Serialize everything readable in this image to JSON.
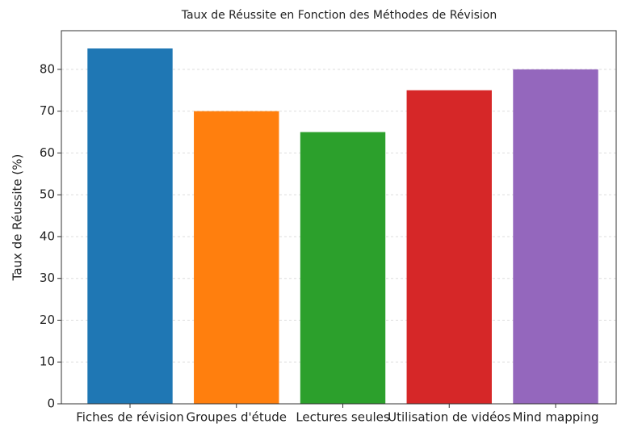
{
  "chart_data": {
    "type": "bar",
    "title": "Taux de Réussite en Fonction des Méthodes de Révision",
    "ylabel": "Taux de Réussite (%)",
    "categories": [
      "Fiches de révision",
      "Groupes d'étude",
      "Lectures seules",
      "Utilisation de vidéos",
      "Mind mapping"
    ],
    "values": [
      85,
      70,
      65,
      75,
      80
    ],
    "colors": [
      "#1f77b4",
      "#ff7f0e",
      "#2ca02c",
      "#d62728",
      "#9467bd"
    ],
    "ylim": [
      0,
      89.25
    ],
    "yticks": [
      0,
      10,
      20,
      30,
      40,
      50,
      60,
      70,
      80
    ],
    "grid": true
  }
}
